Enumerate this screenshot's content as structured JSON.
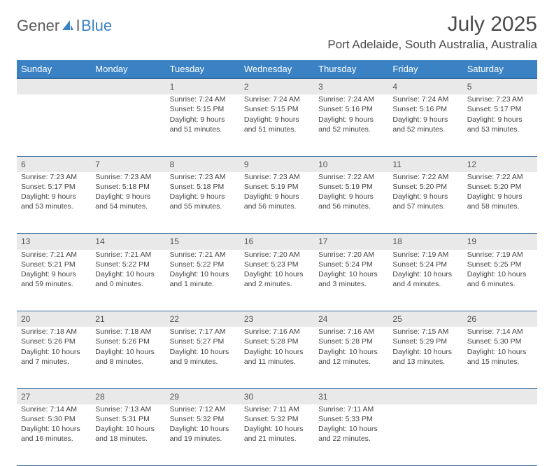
{
  "logo": {
    "part1": "Gener",
    "part2": "l",
    "part3": "Blue"
  },
  "title": {
    "month": "July 2025",
    "location": "Port Adelaide, South Australia, Australia"
  },
  "weekdays": [
    "Sunday",
    "Monday",
    "Tuesday",
    "Wednesday",
    "Thursday",
    "Friday",
    "Saturday"
  ],
  "colors": {
    "headerBg": "#3b82c4",
    "dayStripBg": "#e9e9e9",
    "text": "#444444",
    "rule": "#3b6fa0"
  },
  "weeks": [
    {
      "nums": [
        "",
        "",
        "1",
        "2",
        "3",
        "4",
        "5"
      ],
      "cells": [
        null,
        null,
        {
          "l1": "Sunrise: 7:24 AM",
          "l2": "Sunset: 5:15 PM",
          "l3": "Daylight: 9 hours",
          "l4": "and 51 minutes."
        },
        {
          "l1": "Sunrise: 7:24 AM",
          "l2": "Sunset: 5:15 PM",
          "l3": "Daylight: 9 hours",
          "l4": "and 51 minutes."
        },
        {
          "l1": "Sunrise: 7:24 AM",
          "l2": "Sunset: 5:16 PM",
          "l3": "Daylight: 9 hours",
          "l4": "and 52 minutes."
        },
        {
          "l1": "Sunrise: 7:24 AM",
          "l2": "Sunset: 5:16 PM",
          "l3": "Daylight: 9 hours",
          "l4": "and 52 minutes."
        },
        {
          "l1": "Sunrise: 7:23 AM",
          "l2": "Sunset: 5:17 PM",
          "l3": "Daylight: 9 hours",
          "l4": "and 53 minutes."
        }
      ]
    },
    {
      "nums": [
        "6",
        "7",
        "8",
        "9",
        "10",
        "11",
        "12"
      ],
      "cells": [
        {
          "l1": "Sunrise: 7:23 AM",
          "l2": "Sunset: 5:17 PM",
          "l3": "Daylight: 9 hours",
          "l4": "and 53 minutes."
        },
        {
          "l1": "Sunrise: 7:23 AM",
          "l2": "Sunset: 5:18 PM",
          "l3": "Daylight: 9 hours",
          "l4": "and 54 minutes."
        },
        {
          "l1": "Sunrise: 7:23 AM",
          "l2": "Sunset: 5:18 PM",
          "l3": "Daylight: 9 hours",
          "l4": "and 55 minutes."
        },
        {
          "l1": "Sunrise: 7:23 AM",
          "l2": "Sunset: 5:19 PM",
          "l3": "Daylight: 9 hours",
          "l4": "and 56 minutes."
        },
        {
          "l1": "Sunrise: 7:22 AM",
          "l2": "Sunset: 5:19 PM",
          "l3": "Daylight: 9 hours",
          "l4": "and 56 minutes."
        },
        {
          "l1": "Sunrise: 7:22 AM",
          "l2": "Sunset: 5:20 PM",
          "l3": "Daylight: 9 hours",
          "l4": "and 57 minutes."
        },
        {
          "l1": "Sunrise: 7:22 AM",
          "l2": "Sunset: 5:20 PM",
          "l3": "Daylight: 9 hours",
          "l4": "and 58 minutes."
        }
      ]
    },
    {
      "nums": [
        "13",
        "14",
        "15",
        "16",
        "17",
        "18",
        "19"
      ],
      "cells": [
        {
          "l1": "Sunrise: 7:21 AM",
          "l2": "Sunset: 5:21 PM",
          "l3": "Daylight: 9 hours",
          "l4": "and 59 minutes."
        },
        {
          "l1": "Sunrise: 7:21 AM",
          "l2": "Sunset: 5:22 PM",
          "l3": "Daylight: 10 hours",
          "l4": "and 0 minutes."
        },
        {
          "l1": "Sunrise: 7:21 AM",
          "l2": "Sunset: 5:22 PM",
          "l3": "Daylight: 10 hours",
          "l4": "and 1 minute."
        },
        {
          "l1": "Sunrise: 7:20 AM",
          "l2": "Sunset: 5:23 PM",
          "l3": "Daylight: 10 hours",
          "l4": "and 2 minutes."
        },
        {
          "l1": "Sunrise: 7:20 AM",
          "l2": "Sunset: 5:24 PM",
          "l3": "Daylight: 10 hours",
          "l4": "and 3 minutes."
        },
        {
          "l1": "Sunrise: 7:19 AM",
          "l2": "Sunset: 5:24 PM",
          "l3": "Daylight: 10 hours",
          "l4": "and 4 minutes."
        },
        {
          "l1": "Sunrise: 7:19 AM",
          "l2": "Sunset: 5:25 PM",
          "l3": "Daylight: 10 hours",
          "l4": "and 6 minutes."
        }
      ]
    },
    {
      "nums": [
        "20",
        "21",
        "22",
        "23",
        "24",
        "25",
        "26"
      ],
      "cells": [
        {
          "l1": "Sunrise: 7:18 AM",
          "l2": "Sunset: 5:26 PM",
          "l3": "Daylight: 10 hours",
          "l4": "and 7 minutes."
        },
        {
          "l1": "Sunrise: 7:18 AM",
          "l2": "Sunset: 5:26 PM",
          "l3": "Daylight: 10 hours",
          "l4": "and 8 minutes."
        },
        {
          "l1": "Sunrise: 7:17 AM",
          "l2": "Sunset: 5:27 PM",
          "l3": "Daylight: 10 hours",
          "l4": "and 9 minutes."
        },
        {
          "l1": "Sunrise: 7:16 AM",
          "l2": "Sunset: 5:28 PM",
          "l3": "Daylight: 10 hours",
          "l4": "and 11 minutes."
        },
        {
          "l1": "Sunrise: 7:16 AM",
          "l2": "Sunset: 5:28 PM",
          "l3": "Daylight: 10 hours",
          "l4": "and 12 minutes."
        },
        {
          "l1": "Sunrise: 7:15 AM",
          "l2": "Sunset: 5:29 PM",
          "l3": "Daylight: 10 hours",
          "l4": "and 13 minutes."
        },
        {
          "l1": "Sunrise: 7:14 AM",
          "l2": "Sunset: 5:30 PM",
          "l3": "Daylight: 10 hours",
          "l4": "and 15 minutes."
        }
      ]
    },
    {
      "nums": [
        "27",
        "28",
        "29",
        "30",
        "31",
        "",
        ""
      ],
      "cells": [
        {
          "l1": "Sunrise: 7:14 AM",
          "l2": "Sunset: 5:30 PM",
          "l3": "Daylight: 10 hours",
          "l4": "and 16 minutes."
        },
        {
          "l1": "Sunrise: 7:13 AM",
          "l2": "Sunset: 5:31 PM",
          "l3": "Daylight: 10 hours",
          "l4": "and 18 minutes."
        },
        {
          "l1": "Sunrise: 7:12 AM",
          "l2": "Sunset: 5:32 PM",
          "l3": "Daylight: 10 hours",
          "l4": "and 19 minutes."
        },
        {
          "l1": "Sunrise: 7:11 AM",
          "l2": "Sunset: 5:32 PM",
          "l3": "Daylight: 10 hours",
          "l4": "and 21 minutes."
        },
        {
          "l1": "Sunrise: 7:11 AM",
          "l2": "Sunset: 5:33 PM",
          "l3": "Daylight: 10 hours",
          "l4": "and 22 minutes."
        },
        null,
        null
      ]
    }
  ]
}
